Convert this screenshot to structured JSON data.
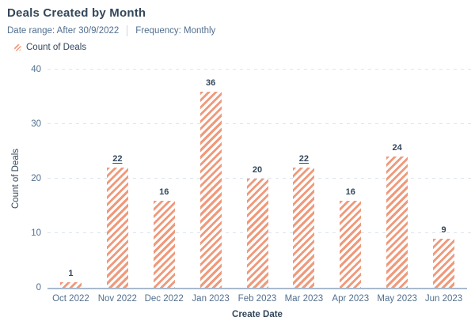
{
  "report": {
    "title": "Deals Created by Month",
    "filters": {
      "date_range_label": "Date range: After 30/9/2022",
      "frequency_label": "Frequency: Monthly"
    },
    "legend": [
      {
        "label": "Count of Deals",
        "swatch": "coral-hatch-circle"
      }
    ]
  },
  "chart_data": {
    "type": "bar",
    "title": "Deals Created by Month",
    "categories": [
      "Oct 2022",
      "Nov 2022",
      "Dec 2022",
      "Jan 2023",
      "Feb 2023",
      "Mar 2023",
      "Apr 2023",
      "May 2023",
      "Jun 2023"
    ],
    "series": [
      {
        "name": "Count of Deals",
        "values": [
          1,
          22,
          16,
          36,
          20,
          22,
          16,
          24,
          9
        ]
      }
    ],
    "data_labels": [
      "1",
      "22",
      "16",
      "36",
      "20",
      "22",
      "16",
      "24",
      "9"
    ],
    "underlined_label_indices": [
      1,
      5
    ],
    "xlabel": "Create Date",
    "ylabel": "Count of Deals",
    "yticks": [
      0,
      10,
      20,
      30,
      40
    ],
    "ylim": [
      0,
      40
    ],
    "grid": "dashed-horizontal",
    "legend_position": "top-left",
    "bar_style": "diagonal-hatch",
    "colors": {
      "bar_stripe": "#f0997b",
      "bar_background": "#ffffff",
      "title_text": "#33475b",
      "subtitle_text": "#516f90",
      "data_label_text": "#33475b",
      "axis_tick_text": "#516f90",
      "gridline": "#dde4ee",
      "baseline": "#a9bacc"
    }
  }
}
